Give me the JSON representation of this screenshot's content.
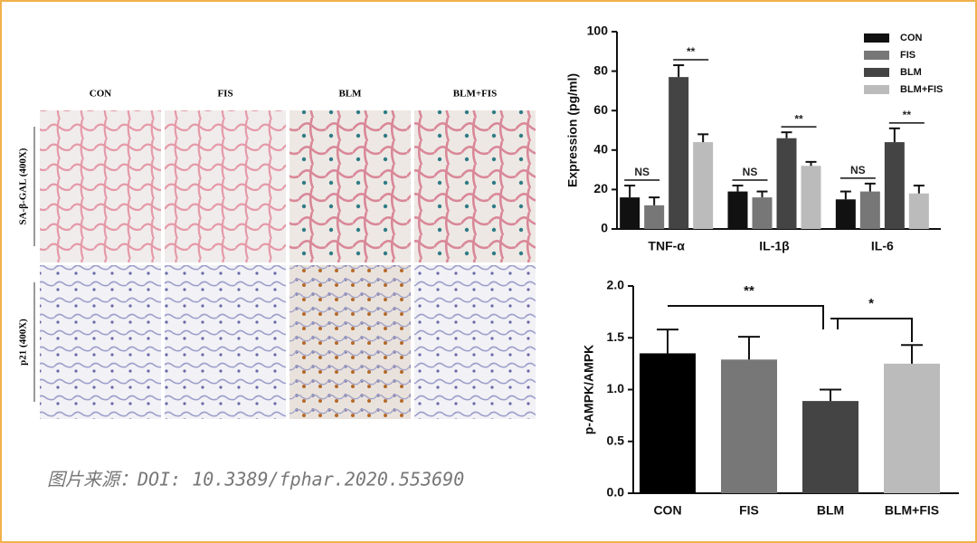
{
  "figure": {
    "columns": [
      "CON",
      "FIS",
      "BLM",
      "BLM+FIS"
    ],
    "rows": [
      "SA-β-GAL (400X)",
      "p21 (400X)"
    ]
  },
  "caption": "图片来源：DOI: 10.3389/fphar.2020.553690",
  "chart_data": [
    {
      "type": "grouped-bar",
      "ylabel": "Expression (pg/ml)",
      "categories": [
        "TNF-α",
        "IL-1β",
        "IL-6"
      ],
      "series": [
        {
          "name": "CON",
          "color": "#111111",
          "values": [
            16,
            19,
            15
          ],
          "errors": [
            6,
            3,
            4
          ]
        },
        {
          "name": "FIS",
          "color": "#777777",
          "values": [
            12,
            16,
            19
          ],
          "errors": [
            4,
            3,
            4
          ]
        },
        {
          "name": "BLM",
          "color": "#444444",
          "values": [
            77,
            46,
            44
          ],
          "errors": [
            6,
            3,
            7
          ]
        },
        {
          "name": "BLM+FIS",
          "color": "#bbbbbb",
          "values": [
            44,
            32,
            18
          ],
          "errors": [
            4,
            2,
            4
          ]
        }
      ],
      "ylim": [
        0,
        100
      ],
      "yticks": [
        0,
        20,
        40,
        60,
        80,
        100
      ],
      "annotations": [
        "NS",
        "**",
        "NS",
        "**",
        "NS",
        "**"
      ]
    },
    {
      "type": "bar",
      "ylabel": "p-AMPK/AMPK",
      "categories": [
        "CON",
        "FIS",
        "BLM",
        "BLM+FIS"
      ],
      "values": [
        1.35,
        1.29,
        0.89,
        1.25
      ],
      "errors": [
        0.23,
        0.22,
        0.11,
        0.18
      ],
      "colors": [
        "#000000",
        "#777777",
        "#444444",
        "#bbbbbb"
      ],
      "ylim": [
        0,
        2.0
      ],
      "yticks": [
        {
          "value": 0,
          "label": "0.0"
        },
        {
          "value": 0.5,
          "label": "0.5"
        },
        {
          "value": 1,
          "label": "1.0"
        },
        {
          "value": 1.5,
          "label": "1.5"
        },
        {
          "value": 2,
          "label": "2.0"
        }
      ],
      "annotations": [
        "**",
        "*"
      ]
    }
  ]
}
